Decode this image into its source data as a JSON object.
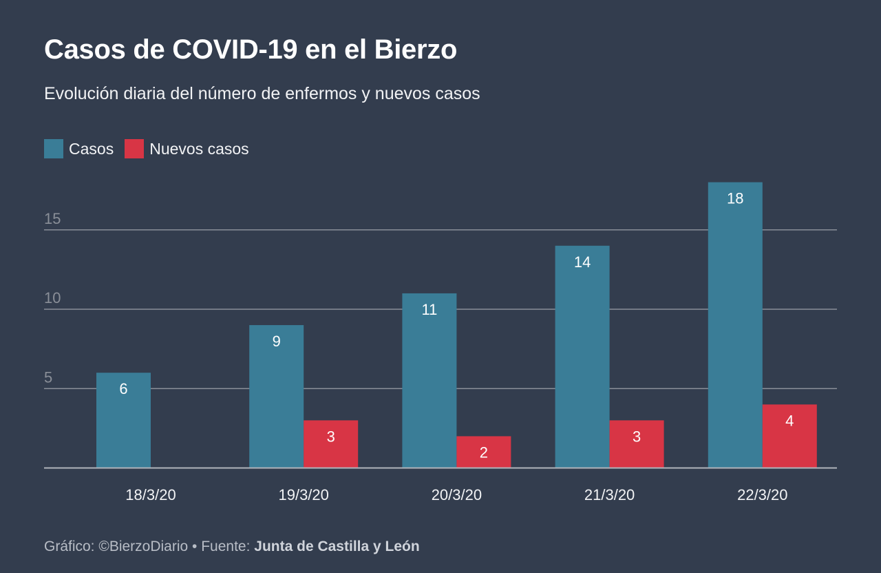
{
  "title": "Casos de COVID-19 en el Bierzo",
  "subtitle": "Evolución diaria del número de enfermos y nuevos casos",
  "footer": {
    "credit": "Gráfico: ©BierzoDiario • Fuente: ",
    "source": "Junta de Castilla y León"
  },
  "colors": {
    "background": "#333d4e",
    "casos": "#3a7d97",
    "nuevos": "#d83545",
    "grid": "#8a8f98",
    "tick": "#8a8f98"
  },
  "chart_data": {
    "type": "bar",
    "categories": [
      "18/3/20",
      "19/3/20",
      "20/3/20",
      "21/3/20",
      "22/3/20"
    ],
    "series": [
      {
        "name": "Casos",
        "values": [
          6,
          9,
          11,
          14,
          18
        ]
      },
      {
        "name": "Nuevos casos",
        "values": [
          null,
          3,
          2,
          3,
          4
        ]
      }
    ],
    "yticks": [
      5,
      10,
      15
    ],
    "ylim": [
      0,
      18
    ],
    "grid": true,
    "legend": "top-left",
    "data_labels": true
  }
}
